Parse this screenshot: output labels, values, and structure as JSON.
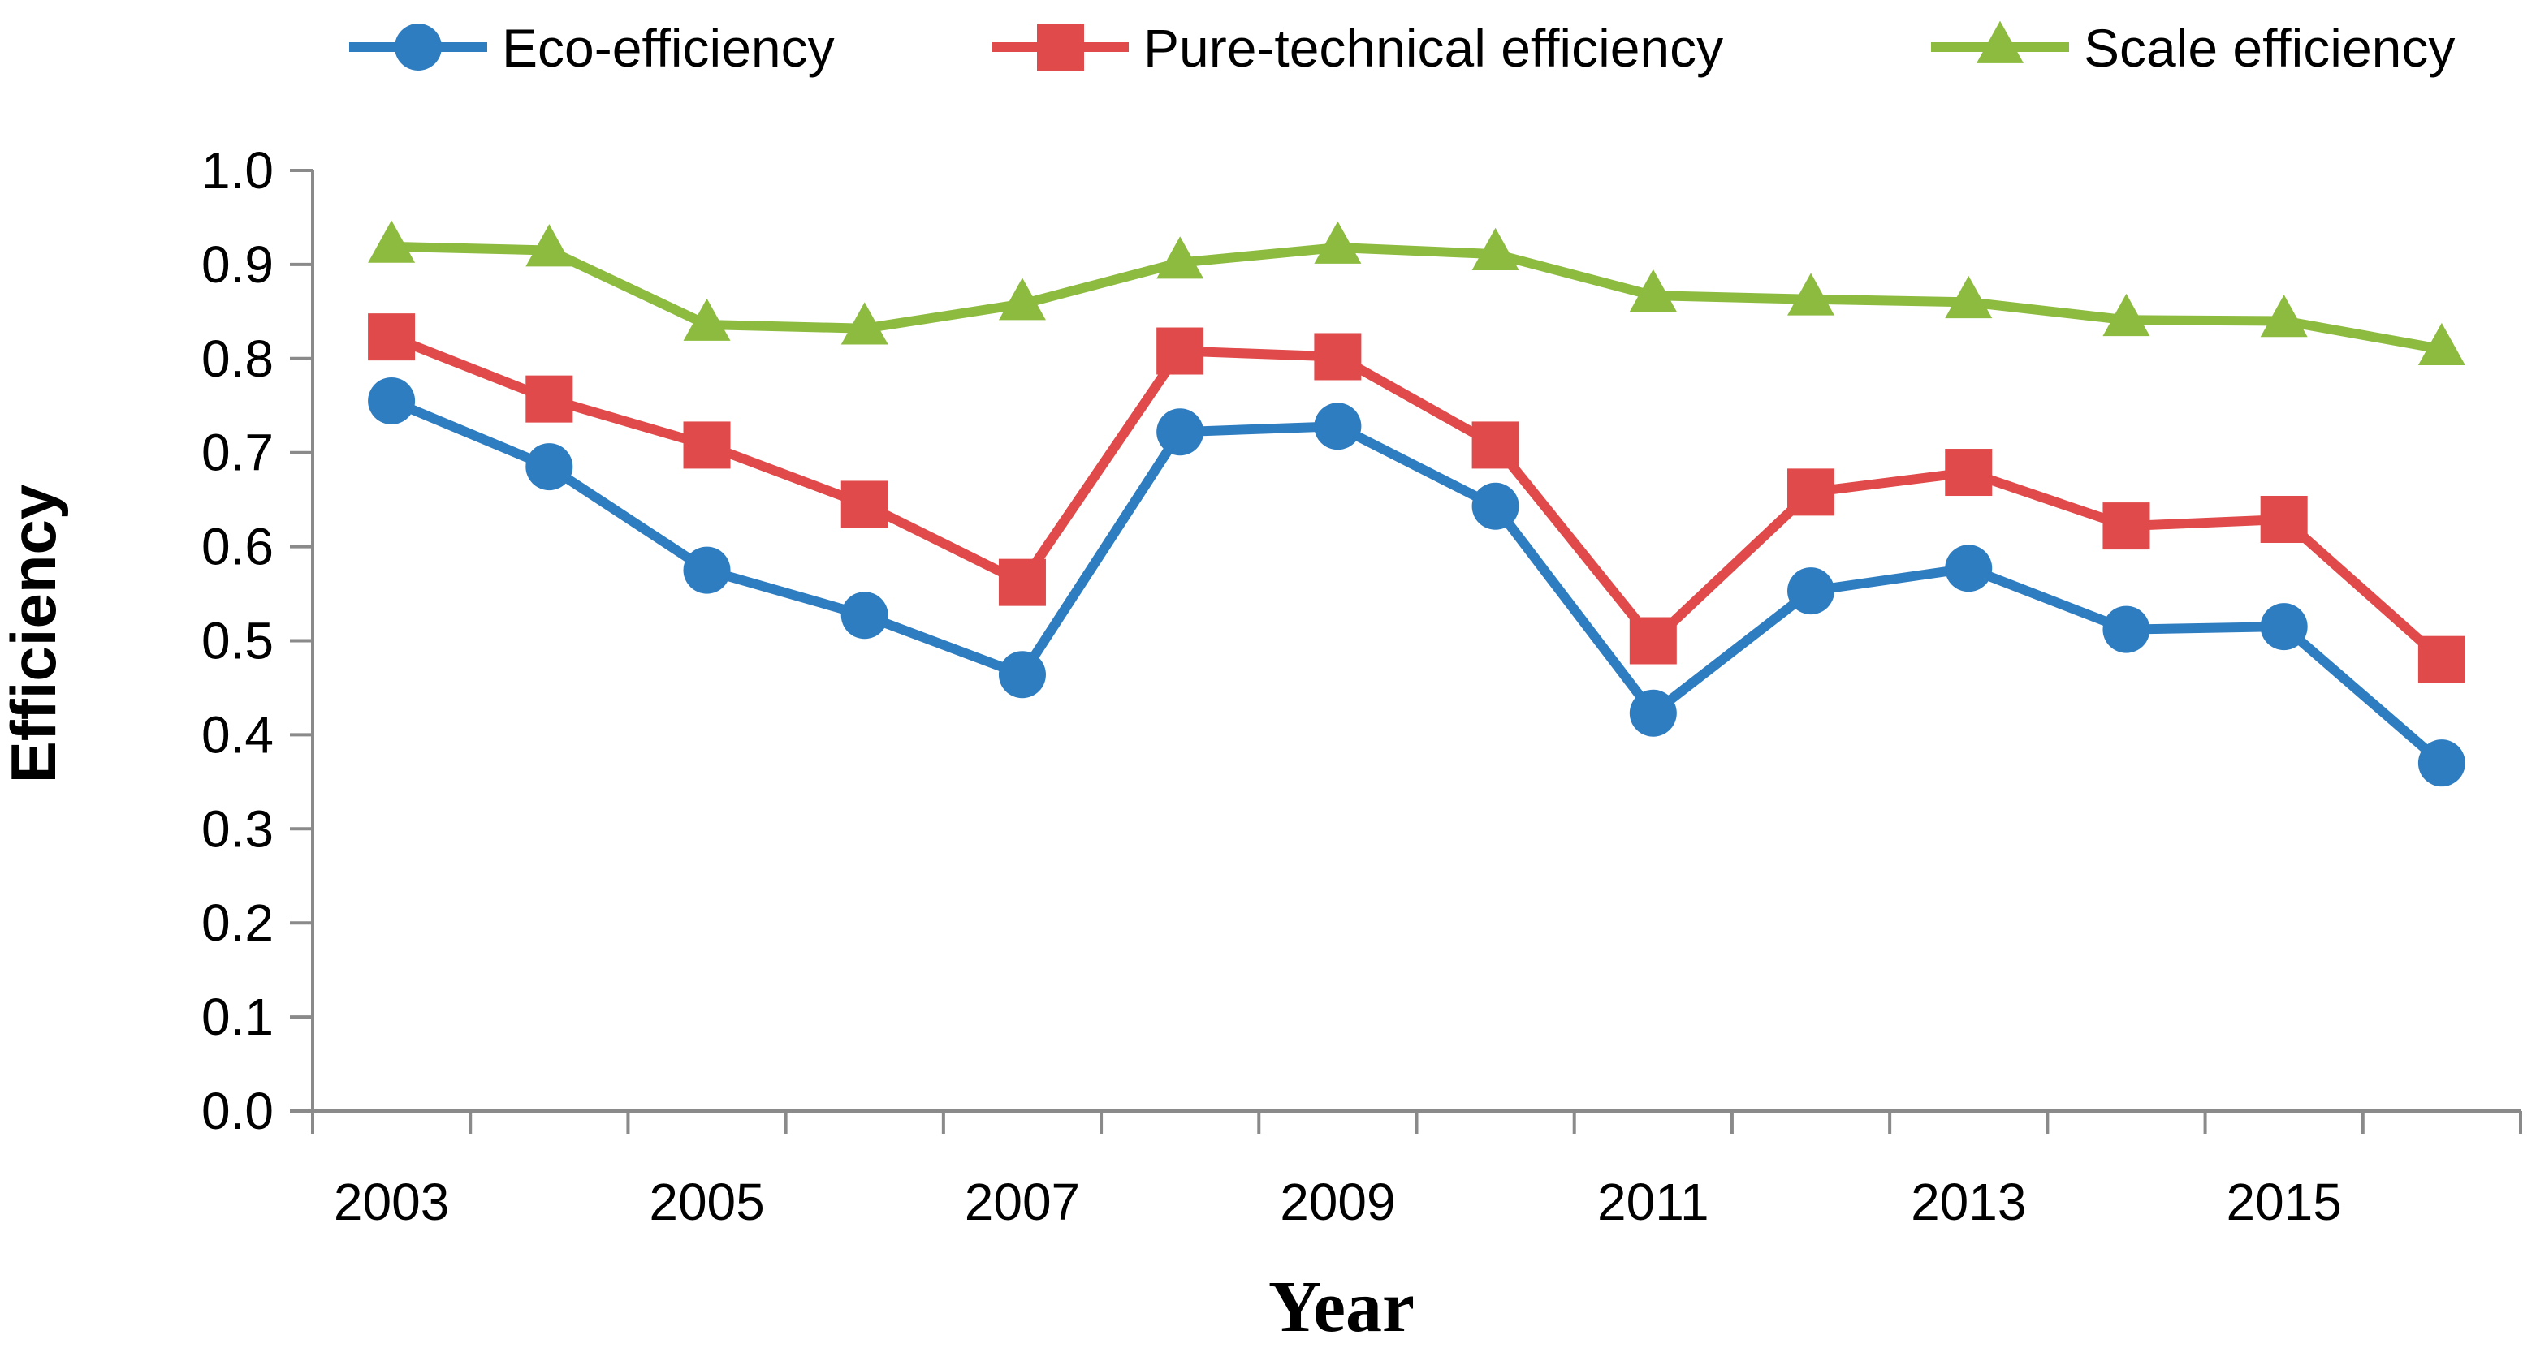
{
  "chart_data": {
    "type": "line",
    "categories": [
      "2003",
      "2004",
      "2005",
      "2006",
      "2007",
      "2008",
      "2009",
      "2010",
      "2011",
      "2012",
      "2013",
      "2014",
      "2015",
      "2016"
    ],
    "x_tick_labels": [
      "2003",
      "2005",
      "2007",
      "2009",
      "2011",
      "2013",
      "2015"
    ],
    "y_tick_labels": [
      "0.0",
      "0.1",
      "0.2",
      "0.3",
      "0.4",
      "0.5",
      "0.6",
      "0.7",
      "0.8",
      "0.9",
      "1.0"
    ],
    "series": [
      {
        "name": "Eco-efficiency",
        "color": "#2E7DC1",
        "marker": "circle",
        "values": [
          0.755,
          0.685,
          0.575,
          0.527,
          0.464,
          0.722,
          0.728,
          0.643,
          0.423,
          0.553,
          0.577,
          0.512,
          0.515,
          0.37
        ]
      },
      {
        "name": "Pure-technical efficiency",
        "color": "#E04A4A",
        "marker": "square",
        "values": [
          0.823,
          0.757,
          0.708,
          0.645,
          0.562,
          0.808,
          0.802,
          0.708,
          0.5,
          0.658,
          0.679,
          0.622,
          0.629,
          0.48
        ]
      },
      {
        "name": "Scale efficiency",
        "color": "#8DBB3F",
        "marker": "triangle",
        "values": [
          0.919,
          0.915,
          0.836,
          0.832,
          0.858,
          0.902,
          0.918,
          0.911,
          0.867,
          0.863,
          0.86,
          0.841,
          0.84,
          0.81
        ]
      }
    ],
    "title": "",
    "xlabel": "Year",
    "ylabel": "Efficiency",
    "ylim": [
      0.0,
      1.0
    ],
    "grid": false,
    "legend_position": "top"
  }
}
